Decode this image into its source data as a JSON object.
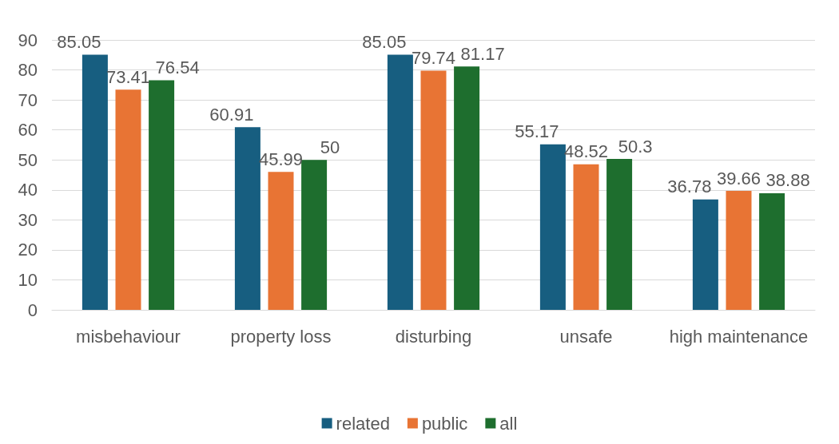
{
  "chart_data": {
    "type": "bar",
    "categories": [
      "misbehaviour",
      "property loss",
      "disturbing",
      "unsafe",
      "high maintenance"
    ],
    "series": [
      {
        "name": "related",
        "color": "#175e80",
        "values": [
          85.05,
          60.91,
          85.05,
          55.17,
          36.78
        ]
      },
      {
        "name": "public",
        "color": "#e87434",
        "values": [
          73.41,
          45.99,
          79.74,
          48.52,
          39.66
        ]
      },
      {
        "name": "all",
        "color": "#1e6e2e",
        "values": [
          76.54,
          50,
          81.17,
          50.3,
          38.88
        ]
      }
    ],
    "ylim": [
      0,
      90
    ],
    "yticks": [
      0,
      10,
      20,
      30,
      40,
      50,
      60,
      70,
      80,
      90
    ],
    "grid": "y",
    "legend": "bottom",
    "data_labels": true
  }
}
